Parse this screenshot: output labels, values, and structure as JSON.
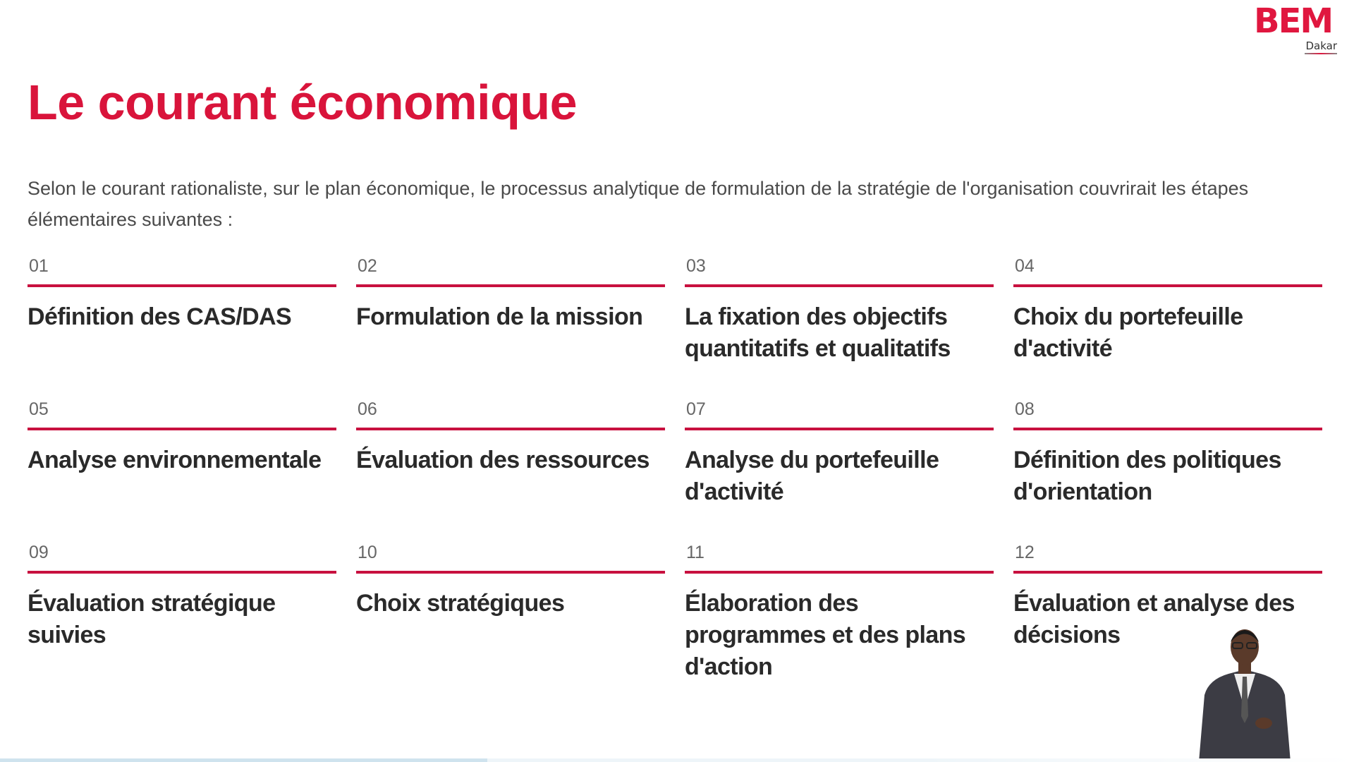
{
  "logo": {
    "brand": "BEM",
    "sub": "Dakar"
  },
  "title": "Le courant économique",
  "intro": "Selon le courant rationaliste, sur le plan économique, le processus analytique de formulation de la stratégie de l'organisation couvrirait les étapes élémentaires suivantes :",
  "accent_color": "#d9143b",
  "steps": [
    {
      "num": "01",
      "title": "Définition des CAS/DAS"
    },
    {
      "num": "02",
      "title": "Formulation de la mission"
    },
    {
      "num": "03",
      "title": "La fixation des objectifs quantitatifs et qualitatifs"
    },
    {
      "num": "04",
      "title": "Choix du portefeuille d'activité"
    },
    {
      "num": "05",
      "title": "Analyse environnementale"
    },
    {
      "num": "06",
      "title": "Évaluation des ressources"
    },
    {
      "num": "07",
      "title": "Analyse du portefeuille d'activité"
    },
    {
      "num": "08",
      "title": "Définition des politiques d'orientation"
    },
    {
      "num": "09",
      "title": "Évaluation stratégique suivies"
    },
    {
      "num": "10",
      "title": "Choix stratégiques"
    },
    {
      "num": "11",
      "title": "Élaboration des programmes et des plans d'action"
    },
    {
      "num": "12",
      "title": "Évaluation et analyse des décisions"
    }
  ]
}
